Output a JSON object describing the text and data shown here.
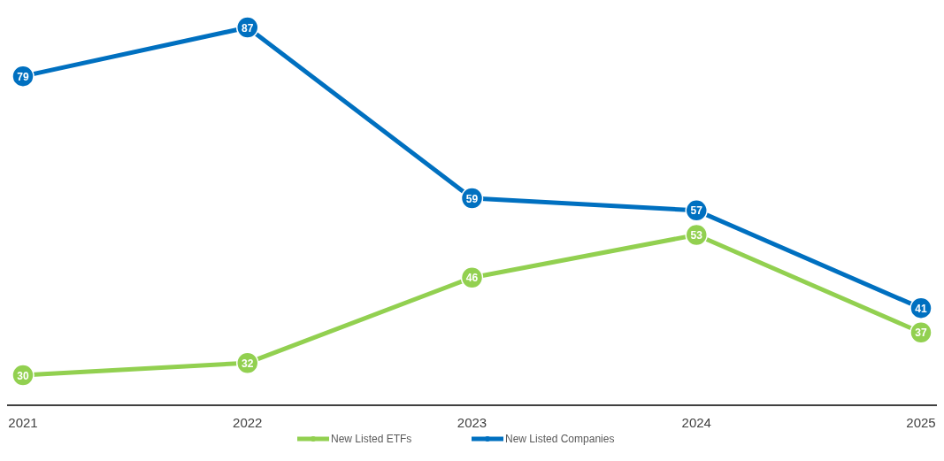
{
  "chart_data": {
    "type": "line",
    "categories": [
      "2021",
      "2022",
      "2023",
      "2024",
      "2025"
    ],
    "series": [
      {
        "name": "New Listed ETFs",
        "color": "#92d050",
        "values": [
          30,
          32,
          46,
          53,
          37
        ]
      },
      {
        "name": "New Listed Companies",
        "color": "#0070c0",
        "values": [
          79,
          87,
          59,
          57,
          41
        ]
      }
    ],
    "tick_labels": "x",
    "data_labels": true,
    "marker": "circle",
    "legend": "bottom",
    "line_style": "solid"
  }
}
